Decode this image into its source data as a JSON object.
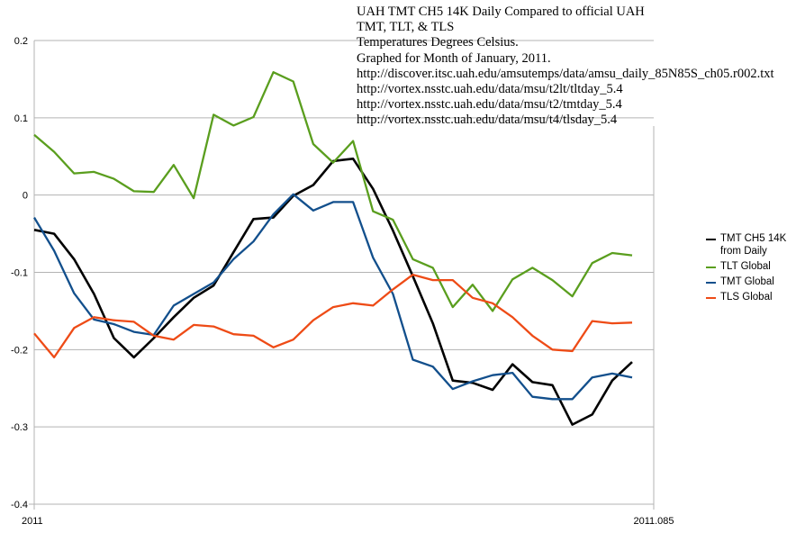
{
  "chart_data": {
    "type": "line",
    "title_lines": [
      "UAH TMT CH5 14K Daily Compared to official UAH",
      "TMT, TLT, & TLS",
      "Temperatures Degrees Celsius.",
      "Graphed for Month of January, 2011.",
      "http://discover.itsc.uah.edu/amsutemps/data/amsu_daily_85N85S_ch05.r002.txt",
      "http://vortex.nsstc.uah.edu/data/msu/t2lt/tltday_5.4",
      "http://vortex.nsstc.uah.edu/data/msu/t2/tmtday_5.4",
      "http://vortex.nsstc.uah.edu/data/msu/t4/tlsday_5.4"
    ],
    "xlabel": "",
    "ylabel": "",
    "x_tick_labels": [
      "2011",
      "2011.085"
    ],
    "ylim": [
      -0.4,
      0.2
    ],
    "y_ticks": [
      0.2,
      0.1,
      0,
      -0.1,
      -0.2,
      -0.3,
      -0.4
    ],
    "y_tick_labels": [
      "0.2",
      "0.1",
      "0",
      "-0.1",
      "-0.2",
      "-0.3",
      "-0.4"
    ],
    "grid": true,
    "legend_position": "right",
    "series": [
      {
        "name": "TMT CH5 14K from Daily",
        "color": "#000000",
        "values": [
          -0.045,
          -0.05,
          -0.083,
          -0.128,
          -0.185,
          -0.21,
          -0.185,
          -0.158,
          -0.133,
          -0.117,
          -0.074,
          -0.031,
          -0.029,
          -0.001,
          0.013,
          0.044,
          0.047,
          0.008,
          -0.046,
          -0.105,
          -0.166,
          -0.24,
          -0.243,
          -0.252,
          -0.219,
          -0.242,
          -0.246,
          -0.297,
          -0.284,
          -0.24,
          -0.216
        ]
      },
      {
        "name": "TLT Global",
        "color": "#5a9e1e",
        "values": [
          0.078,
          0.056,
          0.028,
          0.03,
          0.021,
          0.005,
          0.004,
          0.039,
          -0.004,
          0.104,
          0.09,
          0.101,
          0.159,
          0.147,
          0.066,
          0.042,
          0.07,
          -0.021,
          -0.032,
          -0.083,
          -0.094,
          -0.145,
          -0.116,
          -0.15,
          -0.109,
          -0.094,
          -0.11,
          -0.131,
          -0.088,
          -0.075,
          -0.078
        ]
      },
      {
        "name": "TMT Global",
        "color": "#124f8c",
        "values": [
          -0.029,
          -0.072,
          -0.127,
          -0.161,
          -0.167,
          -0.177,
          -0.181,
          -0.143,
          -0.128,
          -0.113,
          -0.083,
          -0.06,
          -0.025,
          0.001,
          -0.02,
          -0.009,
          -0.009,
          -0.081,
          -0.128,
          -0.213,
          -0.222,
          -0.251,
          -0.241,
          -0.233,
          -0.23,
          -0.261,
          -0.264,
          -0.264,
          -0.236,
          -0.231,
          -0.236
        ]
      },
      {
        "name": "TLS Global",
        "color": "#ee4b16",
        "values": [
          -0.179,
          -0.21,
          -0.172,
          -0.158,
          -0.162,
          -0.164,
          -0.182,
          -0.187,
          -0.168,
          -0.17,
          -0.18,
          -0.182,
          -0.197,
          -0.187,
          -0.162,
          -0.145,
          -0.14,
          -0.143,
          -0.122,
          -0.103,
          -0.11,
          -0.11,
          -0.133,
          -0.14,
          -0.158,
          -0.182,
          -0.2,
          -0.202,
          -0.163,
          -0.166,
          -0.165
        ]
      }
    ]
  }
}
